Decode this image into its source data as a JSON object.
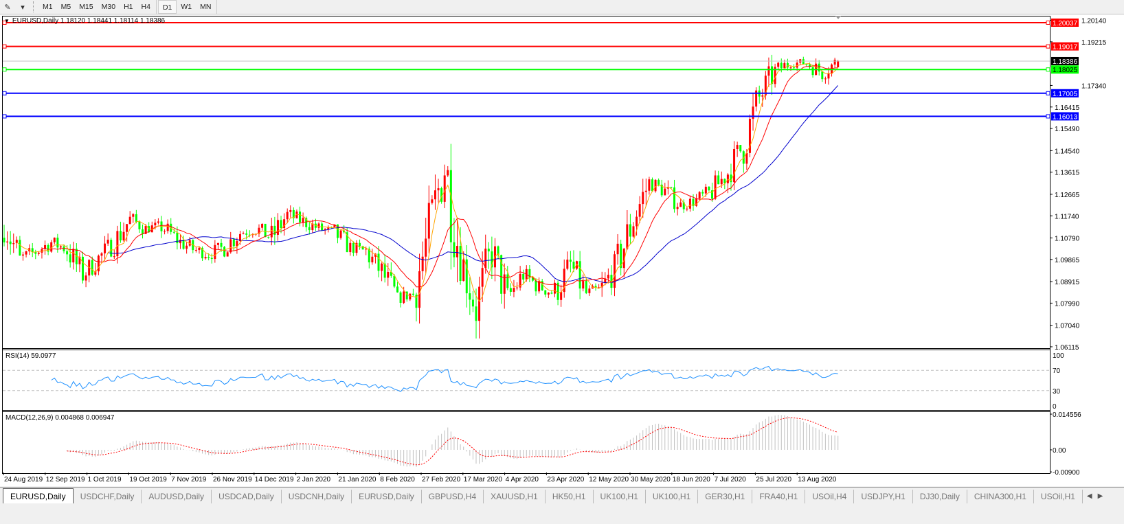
{
  "toolbar": {
    "icons": [
      "crosshair-line-icon",
      "dropdown-arrow-icon"
    ],
    "timeframes": [
      "M1",
      "M5",
      "M15",
      "M30",
      "H1",
      "H4",
      "D1",
      "W1",
      "MN"
    ],
    "active_timeframe": "D1"
  },
  "chart": {
    "title": "EURUSD,Daily  1.18120 1.18441 1.18114 1.18386",
    "symbol": "EURUSD",
    "period": "Daily",
    "ohlc_last": {
      "open": 1.1812,
      "high": 1.18441,
      "low": 1.18114,
      "close": 1.18386
    },
    "bid": "1.18386",
    "price_axis": [
      "1.20140",
      "1.19215",
      "1.17340",
      "1.16415",
      "1.15490",
      "1.14540",
      "1.13615",
      "1.12665",
      "1.11740",
      "1.10790",
      "1.09865",
      "1.08915",
      "1.07990",
      "1.07040",
      "1.06115"
    ],
    "horizontal_lines": [
      {
        "price": "1.20037",
        "color": "#ff0000"
      },
      {
        "price": "1.19017",
        "color": "#ff0000"
      },
      {
        "price": "1.18025",
        "color": "#00ff00"
      },
      {
        "price": "1.17005",
        "color": "#0000ff"
      },
      {
        "price": "1.16013",
        "color": "#0000ff"
      }
    ],
    "colors": {
      "bull": "#ff0000",
      "bear": "#00ff00",
      "ma_fast": "#ffa500",
      "ma_mid": "#ff0000",
      "ma_slow": "#0000cd",
      "rsi": "#1e90ff",
      "macd_hist": "#c0c0c0",
      "macd_signal": "#ff0000"
    },
    "time_axis": [
      "24 Aug 2019",
      "12 Sep 2019",
      "1 Oct 2019",
      "19 Oct 2019",
      "7 Nov 2019",
      "26 Nov 2019",
      "14 Dec 2019",
      "2 Jan 2020",
      "21 Jan 2020",
      "8 Feb 2020",
      "27 Feb 2020",
      "17 Mar 2020",
      "4 Apr 2020",
      "23 Apr 2020",
      "12 May 2020",
      "30 May 2020",
      "18 Jun 2020",
      "7 Jul 2020",
      "25 Jul 2020",
      "13 Aug 2020"
    ]
  },
  "rsi": {
    "label": "RSI(14) 59.0977",
    "levels": [
      "100",
      "70",
      "30",
      "0"
    ]
  },
  "macd": {
    "label": "MACD(12,26,9) 0.004868 0.006947",
    "levels": [
      "0.014556",
      "0.00",
      "-0.00900"
    ]
  },
  "chart_data": {
    "type": "candlestick",
    "x_range": [
      "24 Aug 2019",
      "21 Aug 2020"
    ],
    "close_samples_every_5_bars": [
      1.114,
      1.099,
      1.102,
      1.106,
      1.103,
      1.092,
      1.099,
      1.106,
      1.116,
      1.112,
      1.113,
      1.107,
      1.103,
      1.101,
      1.104,
      1.11,
      1.112,
      1.108,
      1.118,
      1.115,
      1.112,
      1.11,
      1.104,
      1.102,
      1.093,
      1.082,
      1.084,
      1.11,
      1.14,
      1.1,
      1.078,
      1.102,
      1.082,
      1.092,
      1.087,
      1.084,
      1.096,
      1.084,
      1.086,
      1.097,
      1.116,
      1.132,
      1.128,
      1.122,
      1.124,
      1.128,
      1.136,
      1.148,
      1.168,
      1.18,
      1.183,
      1.183,
      1.179,
      1.18386
    ],
    "ylim": [
      1.06115,
      1.2014
    ]
  },
  "tabs": [
    "EURUSD,Daily",
    "USDCHF,Daily",
    "AUDUSD,Daily",
    "USDCAD,Daily",
    "USDCNH,Daily",
    "EURUSD,Daily",
    "GBPUSD,H4",
    "XAUUSD,H1",
    "HK50,H1",
    "UK100,H1",
    "UK100,H1",
    "GER30,H1",
    "FRA40,H1",
    "USOil,H4",
    "USDJPY,H1",
    "DJ30,Daily",
    "CHINA300,H1",
    "USOil,H1"
  ],
  "active_tab": 0
}
